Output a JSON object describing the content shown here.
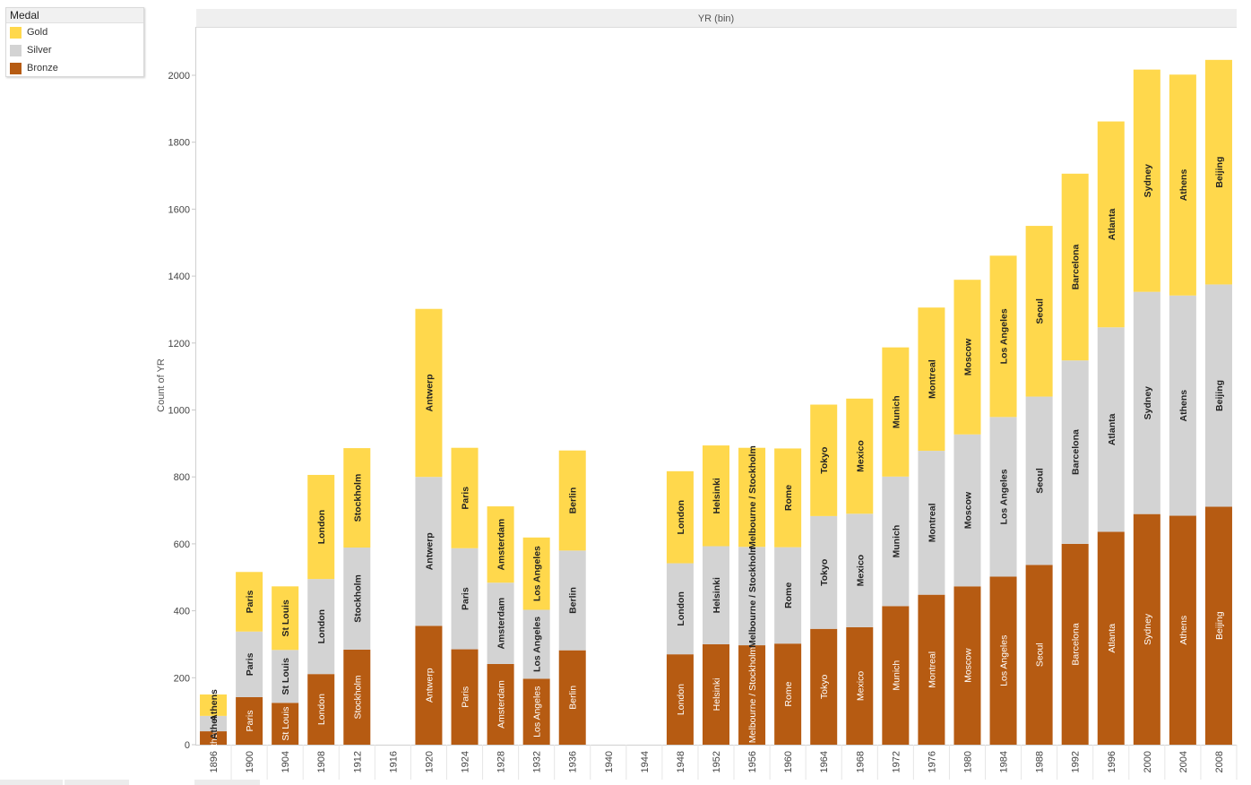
{
  "legend": {
    "title": "Medal",
    "items": [
      {
        "label": "Gold",
        "color": "#FFD84C"
      },
      {
        "label": "Silver",
        "color": "#D3D3D3"
      },
      {
        "label": "Bronze",
        "color": "#B65B12"
      }
    ]
  },
  "chart_data": {
    "type": "bar",
    "stacked": true,
    "title": "YR (bin)",
    "xlabel": "",
    "ylabel": "Count of YR",
    "ylim": [
      0,
      2100
    ],
    "yticks": [
      0,
      200,
      400,
      600,
      800,
      1000,
      1200,
      1400,
      1600,
      1800,
      2000
    ],
    "grid": false,
    "legend_position": "top-left",
    "categories": [
      "1896",
      "1900",
      "1904",
      "1908",
      "1912",
      "1916",
      "1920",
      "1924",
      "1928",
      "1932",
      "1936",
      "1940",
      "1944",
      "1948",
      "1952",
      "1956",
      "1960",
      "1964",
      "1968",
      "1972",
      "1976",
      "1980",
      "1984",
      "1988",
      "1992",
      "1996",
      "2000",
      "2004",
      "2008"
    ],
    "cities": [
      "Athens",
      "Paris",
      "St Louis",
      "London",
      "Stockholm",
      "",
      "Antwerp",
      "Paris",
      "Amsterdam",
      "Los Angeles",
      "Berlin",
      "",
      "",
      "London",
      "Helsinki",
      "Melbourne / Stockholm",
      "Rome",
      "Tokyo",
      "Mexico",
      "Munich",
      "Montreal",
      "Moscow",
      "Los Angeles",
      "Seoul",
      "Barcelona",
      "Atlanta",
      "Sydney",
      "Athens",
      "Beijing"
    ],
    "series": [
      {
        "name": "Bronze",
        "color": "#B65B12",
        "values": [
          40,
          142,
          125,
          211,
          284,
          0,
          355,
          285,
          241,
          197,
          282,
          0,
          0,
          270,
          300,
          297,
          302,
          346,
          351,
          414,
          448,
          473,
          502,
          537,
          600,
          636,
          689,
          684,
          711
        ]
      },
      {
        "name": "Silver",
        "color": "#D3D3D3",
        "values": [
          46,
          196,
          158,
          284,
          305,
          0,
          445,
          302,
          243,
          206,
          298,
          0,
          0,
          272,
          293,
          294,
          288,
          337,
          339,
          387,
          430,
          454,
          477,
          503,
          548,
          611,
          664,
          658,
          664
        ]
      },
      {
        "name": "Gold",
        "color": "#FFD84C",
        "values": [
          64,
          178,
          190,
          311,
          297,
          0,
          502,
          300,
          228,
          216,
          299,
          0,
          0,
          275,
          301,
          296,
          295,
          333,
          344,
          386,
          428,
          462,
          482,
          510,
          558,
          615,
          664,
          660,
          671
        ]
      }
    ]
  }
}
